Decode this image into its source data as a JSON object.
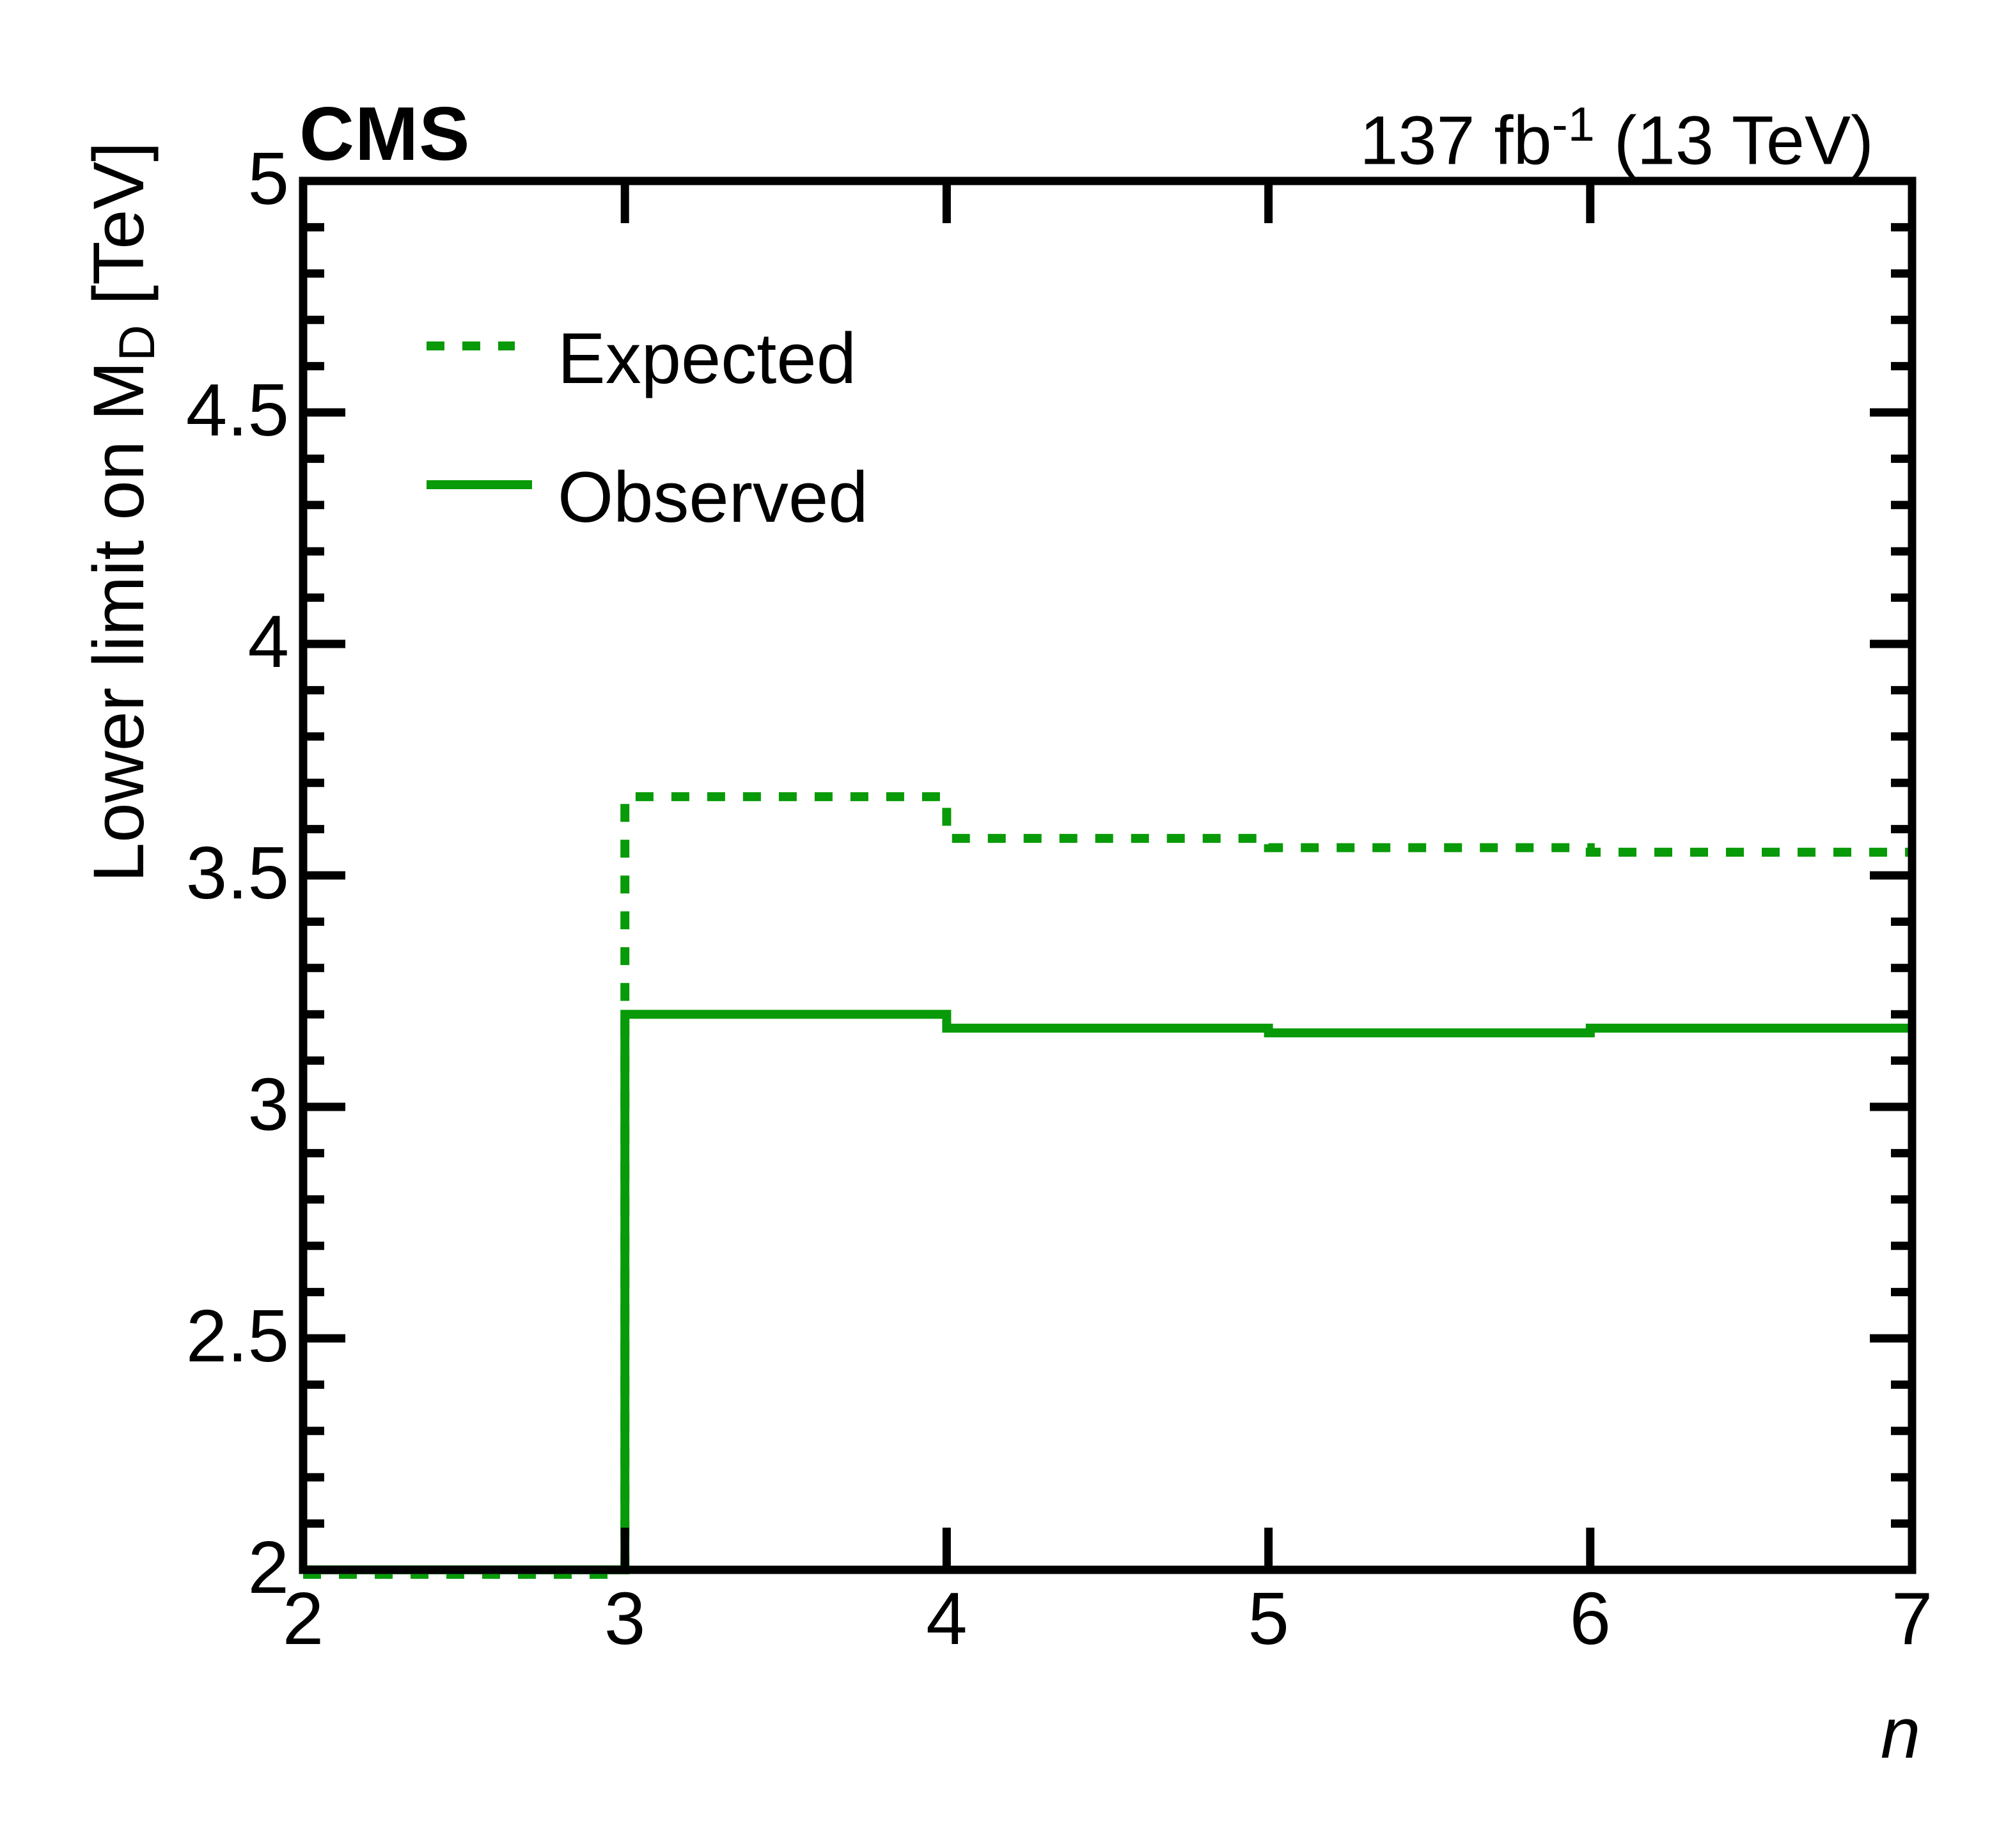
{
  "header": {
    "experiment": "CMS",
    "lumi_prefix": "137 fb",
    "lumi_sup": "-1",
    "lumi_suffix": " (13 TeV)"
  },
  "legend": {
    "position": "top-left",
    "entries": [
      {
        "label": "Expected",
        "style": "dashed"
      },
      {
        "label": "Observed",
        "style": "solid"
      }
    ]
  },
  "chart_data": {
    "type": "line",
    "subtype": "step-histogram",
    "title": "",
    "xlabel": "n",
    "ylabel": "Lower limit on M_D [TeV]",
    "ylabel_prefix": "Lower limit on M",
    "ylabel_sub": "D",
    "ylabel_suffix": " [TeV]",
    "xlim": [
      2,
      7
    ],
    "ylim": [
      2,
      5
    ],
    "x_tick_labels": [
      "2",
      "3",
      "4",
      "5",
      "6",
      "7"
    ],
    "y_tick_labels": [
      "2",
      "2.5",
      "3",
      "3.5",
      "4",
      "4.5",
      "5"
    ],
    "y_minor_step": 0.1,
    "grid": false,
    "line_color": "#089a08",
    "bin_edges": [
      2,
      3,
      4,
      5,
      6,
      7
    ],
    "series": [
      {
        "name": "Expected",
        "style": "dashed",
        "color": "#089a08",
        "values": [
          2.0,
          3.67,
          3.58,
          3.56,
          3.55
        ]
      },
      {
        "name": "Observed",
        "style": "solid",
        "color": "#089a08",
        "values": [
          2.0,
          3.2,
          3.17,
          3.16,
          3.17
        ]
      }
    ]
  }
}
